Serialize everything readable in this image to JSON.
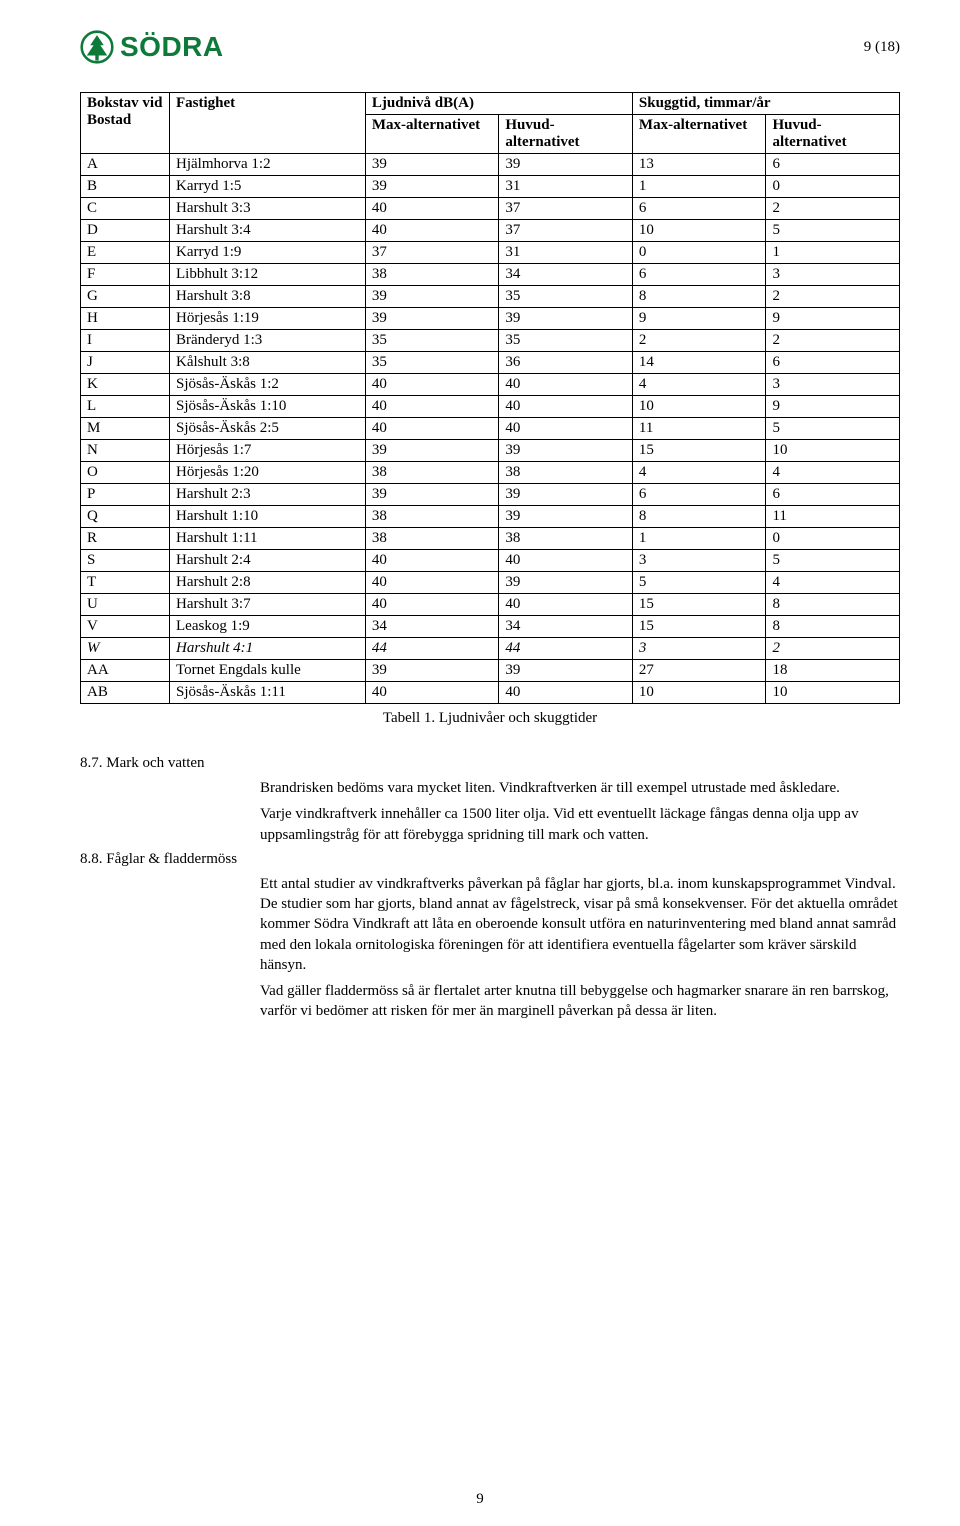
{
  "header": {
    "logo_text": "SÖDRA",
    "logo_color": "#0e7a3a",
    "page_indicator": "9 (18)"
  },
  "table": {
    "header_row1": {
      "c0": "Bokstav vid Bostad",
      "c1": "Fastighet",
      "c2_span": "Ljudnivå dB(A)",
      "c3_span": "Skuggtid, timmar/år"
    },
    "header_row2": {
      "c2": "Max-alternativet",
      "c3": "Huvud-alternativet",
      "c4": "Max-alternativet",
      "c5": "Huvud-alternativet"
    },
    "rows": [
      {
        "l": "A",
        "f": "Hjälmhorva 1:2",
        "v": [
          "39",
          "39",
          "13",
          "6"
        ]
      },
      {
        "l": "B",
        "f": "Karryd 1:5",
        "v": [
          "39",
          "31",
          "1",
          "0"
        ]
      },
      {
        "l": "C",
        "f": "Harshult 3:3",
        "v": [
          "40",
          "37",
          "6",
          "2"
        ]
      },
      {
        "l": "D",
        "f": "Harshult 3:4",
        "v": [
          "40",
          "37",
          "10",
          "5"
        ]
      },
      {
        "l": "E",
        "f": "Karryd 1:9",
        "v": [
          "37",
          "31",
          "0",
          "1"
        ]
      },
      {
        "l": "F",
        "f": "Libbhult 3:12",
        "v": [
          "38",
          "34",
          "6",
          "3"
        ]
      },
      {
        "l": "G",
        "f": "Harshult 3:8",
        "v": [
          "39",
          "35",
          "8",
          "2"
        ]
      },
      {
        "l": "H",
        "f": "Hörjesås 1:19",
        "v": [
          "39",
          "39",
          "9",
          "9"
        ]
      },
      {
        "l": "I",
        "f": "Bränderyd 1:3",
        "v": [
          "35",
          "35",
          "2",
          "2"
        ]
      },
      {
        "l": "J",
        "f": "Kålshult 3:8",
        "v": [
          "35",
          "36",
          "14",
          "6"
        ]
      },
      {
        "l": "K",
        "f": "Sjösås-Äskås 1:2",
        "v": [
          "40",
          "40",
          "4",
          "3"
        ]
      },
      {
        "l": "L",
        "f": "Sjösås-Äskås 1:10",
        "v": [
          "40",
          "40",
          "10",
          "9"
        ]
      },
      {
        "l": "M",
        "f": "Sjösås-Äskås 2:5",
        "v": [
          "40",
          "40",
          "11",
          "5"
        ]
      },
      {
        "l": "N",
        "f": "Hörjesås 1:7",
        "v": [
          "39",
          "39",
          "15",
          "10"
        ]
      },
      {
        "l": "O",
        "f": "Hörjesås 1:20",
        "v": [
          "38",
          "38",
          "4",
          "4"
        ]
      },
      {
        "l": "P",
        "f": "Harshult 2:3",
        "v": [
          "39",
          "39",
          "6",
          "6"
        ]
      },
      {
        "l": "Q",
        "f": "Harshult 1:10",
        "v": [
          "38",
          "39",
          "8",
          "11"
        ]
      },
      {
        "l": "R",
        "f": "Harshult 1:11",
        "v": [
          "38",
          "38",
          "1",
          "0"
        ]
      },
      {
        "l": "S",
        "f": "Harshult 2:4",
        "v": [
          "40",
          "40",
          "3",
          "5"
        ]
      },
      {
        "l": "T",
        "f": "Harshult 2:8",
        "v": [
          "40",
          "39",
          "5",
          "4"
        ]
      },
      {
        "l": "U",
        "f": "Harshult 3:7",
        "v": [
          "40",
          "40",
          "15",
          "8"
        ]
      },
      {
        "l": "V",
        "f": "Leaskog 1:9",
        "v": [
          "34",
          "34",
          "15",
          "8"
        ]
      },
      {
        "l": "W",
        "f": "Harshult 4:1",
        "v": [
          "44",
          "44",
          "3",
          "2"
        ],
        "italic": true
      },
      {
        "l": "AA",
        "f": "Tornet Engdals kulle",
        "v": [
          "39",
          "39",
          "27",
          "18"
        ]
      },
      {
        "l": "AB",
        "f": "Sjösås-Äskås 1:11",
        "v": [
          "40",
          "40",
          "10",
          "10"
        ]
      }
    ],
    "caption": "Tabell 1. Ljudnivåer och skuggtider"
  },
  "sections": {
    "s87_head": "8.7. Mark och vatten",
    "s87_p1": "Brandrisken bedöms vara mycket liten. Vindkraftverken är till exempel utrustade med åskledare.",
    "s87_p2": "Varje vindkraftverk innehåller ca 1500 liter olja. Vid ett eventuellt läckage fångas denna olja upp av uppsamlingstråg för att förebygga spridning till mark och vatten.",
    "s88_head": "8.8. Fåglar & fladdermöss",
    "s88_p1": "Ett antal studier av vindkraftverks påverkan på fåglar har gjorts, bl.a. inom kunskapsprogrammet Vindval. De studier som har gjorts, bland annat av fågelstreck, visar på små konsekvenser. För det aktuella området kommer Södra Vindkraft att låta en oberoende konsult utföra en naturinventering med bland annat samråd med den lokala ornitologiska föreningen för att identifiera eventuella fågelarter som kräver särskild hänsyn.",
    "s88_p2": "Vad gäller fladdermöss så är flertalet arter knutna till bebyggelse och hagmarker snarare än ren barrskog, varför vi bedömer att risken för mer än marginell påverkan på dessa är liten."
  },
  "footer": {
    "num": "9"
  }
}
